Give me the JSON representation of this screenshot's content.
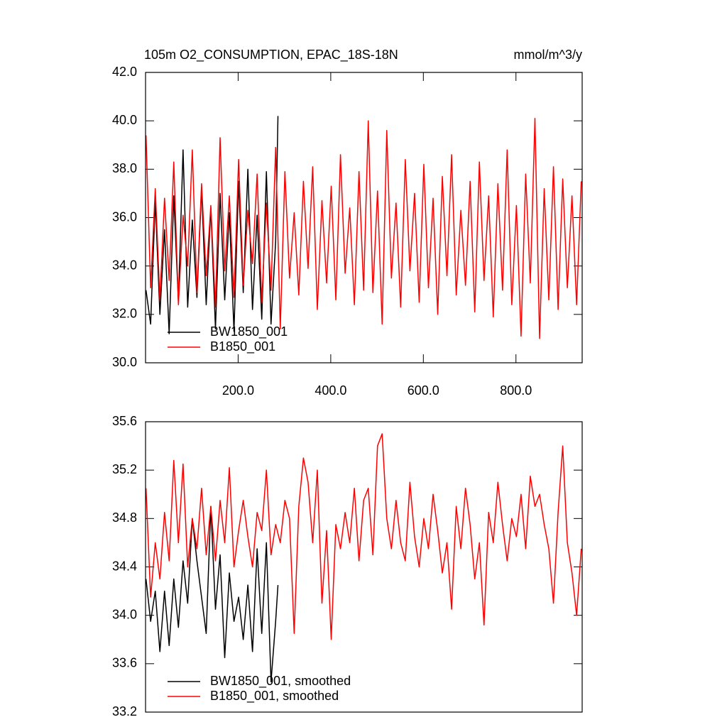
{
  "chart_data": [
    {
      "type": "line",
      "title": "105m O2_CONSUMPTION, EPAC_18S-18N",
      "units_label": "mmol/m^3/y",
      "xlim": [
        0,
        943
      ],
      "ylim": [
        30,
        42
      ],
      "xticks": [
        {
          "value": 200,
          "label": "200.0"
        },
        {
          "value": 400,
          "label": "400.0"
        },
        {
          "value": 600,
          "label": "600.0"
        },
        {
          "value": 800,
          "label": "800.0"
        }
      ],
      "yticks": [
        {
          "value": 30,
          "label": "30.0"
        },
        {
          "value": 32,
          "label": "32.0"
        },
        {
          "value": 34,
          "label": "34.0"
        },
        {
          "value": 36,
          "label": "36.0"
        },
        {
          "value": 38,
          "label": "38.0"
        },
        {
          "value": 40,
          "label": "40.0"
        },
        {
          "value": 42,
          "label": "42.0"
        }
      ],
      "series": [
        {
          "name": "BW1850_001",
          "color": "#000000",
          "x": [
            1,
            11,
            21,
            31,
            41,
            51,
            61,
            71,
            81,
            91,
            101,
            111,
            121,
            131,
            141,
            151,
            161,
            171,
            181,
            191,
            201,
            211,
            221,
            231,
            241,
            251,
            261,
            271,
            281,
            286
          ],
          "values": [
            33.0,
            31.6,
            36.7,
            32.0,
            35.5,
            31.2,
            36.9,
            32.5,
            38.8,
            32.3,
            35.9,
            32.7,
            37.2,
            32.4,
            36.4,
            31.4,
            37.0,
            32.6,
            36.2,
            31.3,
            37.5,
            32.9,
            38.0,
            32.2,
            36.1,
            31.8,
            37.9,
            31.6,
            35.0,
            40.2
          ]
        },
        {
          "name": "B1850_001",
          "color": "#ff0000",
          "x": [
            1,
            11,
            21,
            31,
            41,
            51,
            61,
            71,
            81,
            91,
            101,
            111,
            121,
            131,
            141,
            151,
            161,
            171,
            181,
            191,
            201,
            211,
            221,
            231,
            241,
            251,
            261,
            271,
            281,
            291,
            301,
            311,
            321,
            331,
            341,
            351,
            361,
            371,
            381,
            391,
            401,
            411,
            421,
            431,
            441,
            451,
            461,
            471,
            481,
            491,
            501,
            511,
            521,
            531,
            541,
            551,
            561,
            571,
            581,
            591,
            601,
            611,
            621,
            631,
            641,
            651,
            661,
            671,
            681,
            691,
            701,
            711,
            721,
            731,
            741,
            751,
            761,
            771,
            781,
            791,
            801,
            811,
            821,
            831,
            841,
            851,
            861,
            871,
            881,
            891,
            901,
            911,
            921,
            931,
            941
          ],
          "values": [
            39.4,
            33.1,
            37.2,
            32.6,
            36.8,
            33.4,
            38.3,
            32.4,
            36.1,
            34.0,
            38.8,
            32.9,
            37.4,
            33.6,
            36.5,
            32.3,
            39.3,
            33.8,
            36.9,
            32.7,
            38.4,
            33.2,
            36.3,
            34.1,
            37.8,
            32.5,
            36.6,
            33.0,
            38.9,
            31.4,
            37.9,
            33.5,
            36.2,
            32.8,
            37.5,
            33.9,
            38.1,
            32.2,
            36.7,
            33.3,
            37.3,
            32.6,
            38.6,
            33.7,
            36.4,
            32.4,
            37.9,
            33.0,
            40.0,
            32.9,
            37.1,
            31.6,
            39.6,
            33.5,
            36.6,
            32.3,
            38.4,
            33.8,
            37.0,
            32.5,
            38.2,
            33.1,
            36.8,
            32.0,
            37.7,
            33.6,
            38.6,
            32.8,
            36.3,
            33.2,
            37.5,
            32.1,
            38.3,
            33.4,
            36.9,
            31.9,
            37.4,
            33.0,
            38.8,
            32.4,
            36.5,
            31.1,
            37.8,
            33.3,
            40.1,
            31.0,
            37.2,
            32.6,
            38.1,
            32.2,
            37.6,
            33.1,
            36.9,
            32.4,
            37.5
          ]
        }
      ]
    },
    {
      "type": "line",
      "xlim": [
        0,
        943
      ],
      "ylim": [
        33.2,
        35.6
      ],
      "yticks": [
        33.2,
        33.6,
        {
          "value": 34.0,
          "label": "34.0"
        },
        34.4,
        34.8,
        35.2,
        35.6
      ],
      "series": [
        {
          "name": "BW1850_001, smoothed",
          "color": "#000000",
          "x": [
            1,
            11,
            21,
            31,
            41,
            51,
            61,
            71,
            81,
            91,
            101,
            111,
            121,
            131,
            141,
            151,
            161,
            171,
            181,
            191,
            201,
            211,
            221,
            231,
            241,
            251,
            261,
            271,
            281,
            286
          ],
          "values": [
            34.3,
            33.95,
            34.2,
            33.7,
            34.2,
            33.75,
            34.3,
            33.9,
            34.45,
            34.1,
            34.8,
            34.45,
            34.15,
            33.85,
            34.9,
            34.05,
            34.5,
            33.65,
            34.35,
            33.95,
            34.15,
            33.8,
            34.25,
            33.7,
            34.55,
            33.85,
            34.6,
            33.45,
            33.95,
            34.25
          ]
        },
        {
          "name": "B1850_001, smoothed",
          "color": "#ff0000",
          "x": [
            1,
            11,
            21,
            31,
            41,
            51,
            61,
            71,
            81,
            91,
            101,
            111,
            121,
            131,
            141,
            151,
            161,
            171,
            181,
            191,
            201,
            211,
            221,
            231,
            241,
            251,
            261,
            271,
            281,
            291,
            301,
            311,
            321,
            331,
            341,
            351,
            361,
            371,
            381,
            391,
            401,
            411,
            421,
            431,
            441,
            451,
            461,
            471,
            481,
            491,
            501,
            511,
            521,
            531,
            541,
            551,
            561,
            571,
            581,
            591,
            601,
            611,
            621,
            631,
            641,
            651,
            661,
            671,
            681,
            691,
            701,
            711,
            721,
            731,
            741,
            751,
            761,
            771,
            781,
            791,
            801,
            811,
            821,
            831,
            841,
            851,
            861,
            871,
            881,
            891,
            901,
            911,
            921,
            931,
            941
          ],
          "values": [
            35.05,
            34.15,
            34.6,
            34.3,
            34.85,
            34.45,
            35.28,
            34.6,
            35.25,
            34.4,
            34.8,
            34.55,
            35.05,
            34.5,
            34.9,
            34.45,
            34.95,
            34.6,
            35.22,
            34.4,
            34.7,
            34.95,
            34.65,
            34.4,
            34.85,
            34.7,
            35.2,
            34.5,
            34.75,
            34.6,
            34.95,
            34.8,
            33.85,
            34.9,
            35.3,
            35.1,
            34.6,
            35.2,
            34.1,
            34.7,
            33.8,
            34.75,
            34.55,
            34.85,
            34.6,
            35.05,
            34.45,
            34.95,
            35.05,
            34.5,
            35.4,
            35.5,
            34.8,
            34.55,
            34.95,
            34.6,
            34.45,
            35.1,
            34.65,
            34.4,
            34.8,
            34.55,
            35.0,
            34.7,
            34.35,
            34.6,
            34.05,
            34.9,
            34.55,
            35.05,
            34.75,
            34.3,
            34.6,
            33.92,
            34.85,
            34.6,
            35.1,
            34.75,
            34.45,
            34.8,
            34.65,
            35.0,
            34.55,
            35.15,
            34.9,
            35.0,
            34.75,
            34.55,
            34.1,
            34.85,
            35.4,
            34.6,
            34.35,
            34.0,
            34.55
          ]
        }
      ]
    }
  ]
}
